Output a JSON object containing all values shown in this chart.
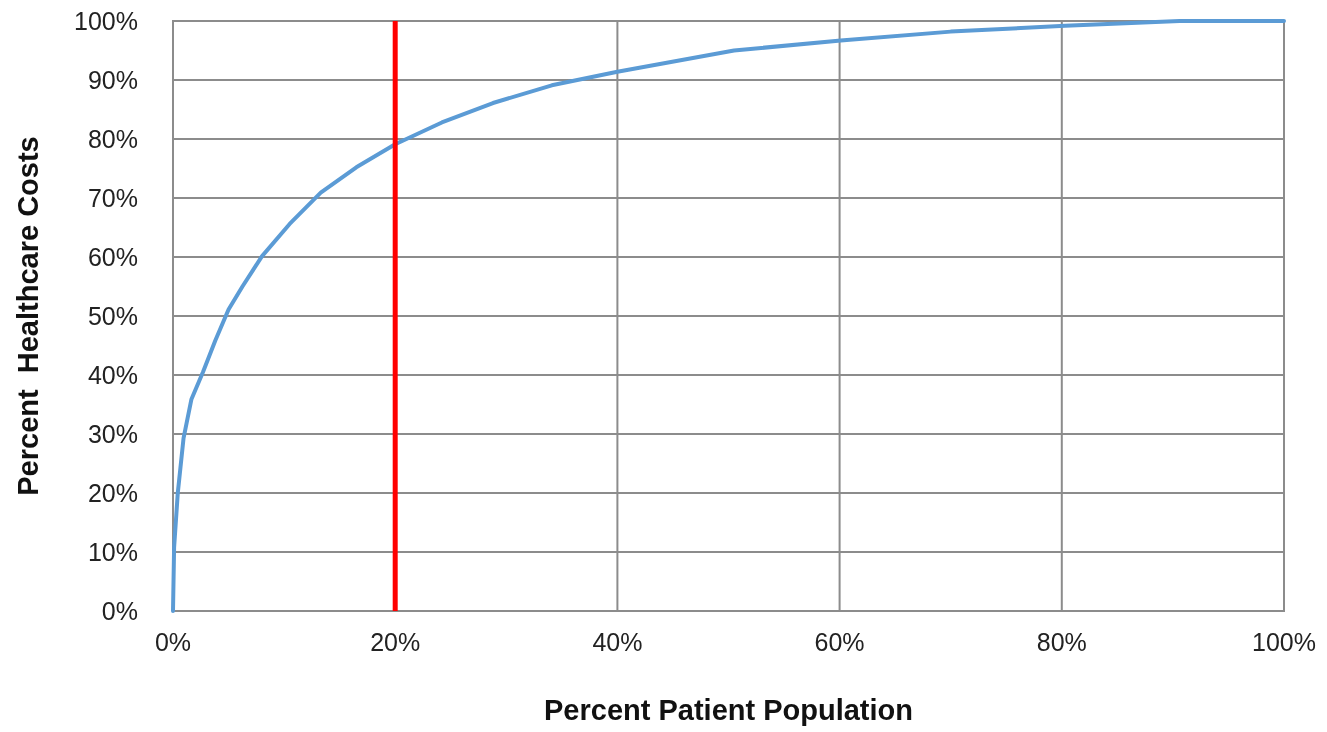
{
  "chart_data": {
    "type": "line",
    "xlabel": "Percent Patient Population",
    "ylabel": "Percent  Healthcare Costs",
    "x": [
      0,
      0.1,
      0.43,
      0.95,
      1.66,
      2.7,
      3.8,
      5,
      6.25,
      8,
      10.5,
      13.3,
      16.5,
      20,
      24.2,
      28.8,
      34.1,
      40,
      50.5,
      60.1,
      70,
      80.3,
      90.6,
      100
    ],
    "series": [
      {
        "color": "#5b9bd5",
        "values": [
          0,
          10.8,
          20,
          29.3,
          35.9,
          40.5,
          45.8,
          51.1,
          55,
          60.1,
          65.6,
          70.9,
          75.2,
          79.1,
          82.8,
          86.1,
          89.1,
          91.4,
          95,
          96.7,
          98.2,
          99.2,
          100,
          100
        ]
      }
    ],
    "xlim": [
      0,
      100
    ],
    "ylim": [
      0,
      100
    ],
    "xticks": [
      {
        "value": 0,
        "label": "0%"
      },
      {
        "value": 20,
        "label": "20%"
      },
      {
        "value": 40,
        "label": "40%"
      },
      {
        "value": 60,
        "label": "60%"
      },
      {
        "value": 80,
        "label": "80%"
      },
      {
        "value": 100,
        "label": "100%"
      }
    ],
    "yticks": [
      {
        "value": 0,
        "label": "0%"
      },
      {
        "value": 10,
        "label": "10%"
      },
      {
        "value": 20,
        "label": "20%"
      },
      {
        "value": 30,
        "label": "30%"
      },
      {
        "value": 40,
        "label": "40%"
      },
      {
        "value": 50,
        "label": "50%"
      },
      {
        "value": 60,
        "label": "60%"
      },
      {
        "value": 70,
        "label": "70%"
      },
      {
        "value": 80,
        "label": "80%"
      },
      {
        "value": 90,
        "label": "90%"
      },
      {
        "value": 100,
        "label": "100%"
      }
    ],
    "grid": true,
    "marker": "none",
    "line_style": "solid",
    "ref_lines": [
      {
        "axis": "x",
        "value": 20,
        "color": "#ff0000"
      }
    ]
  }
}
